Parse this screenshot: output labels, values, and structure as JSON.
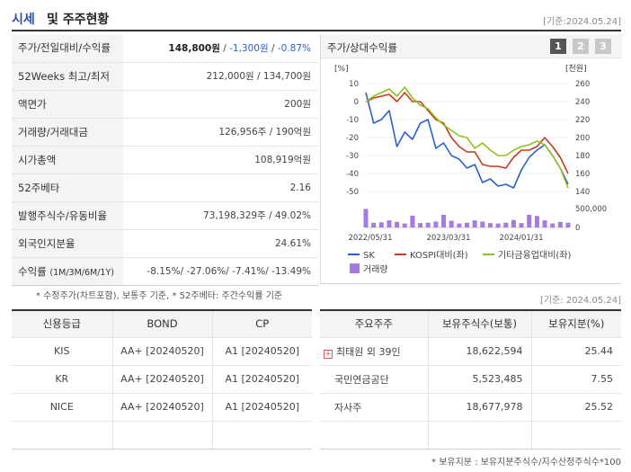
{
  "header": {
    "title_a": "시세",
    "title_b": "및 주주현황",
    "date": "[기준:2024.05.24]"
  },
  "summary": {
    "rows": [
      {
        "label": "주가/전일대비/수익률"
      },
      {
        "label": "52Weeks 최고/최저",
        "value": "212,000원 / 134,700원"
      },
      {
        "label": "액면가",
        "value": "200원"
      },
      {
        "label": "거래량/거래대금",
        "value": "126,956주 / 190억원"
      },
      {
        "label": "시가총액",
        "value": "108,919억원"
      },
      {
        "label": "52주베타",
        "value": "2.16"
      },
      {
        "label": "발행주식수/유동비율",
        "value": "73,198,329주 / 49.02%"
      },
      {
        "label": "외국인지분율",
        "value": "24.61%"
      },
      {
        "label": "수익률",
        "sub": "(1M/3M/6M/1Y)",
        "value": "-8.15%/ -27.06%/ -7.41%/ -13.49%"
      }
    ],
    "price": "148,800원",
    "sep": " / ",
    "change": "-1,300원",
    "change_pct": "-0.87%"
  },
  "chart_panel": {
    "title": "주가/상대수익률",
    "pages": [
      "1",
      "2",
      "3"
    ]
  },
  "chart_data": {
    "type": "line",
    "left_axis": {
      "label": "[%]",
      "ticks": [
        "10",
        "0",
        "-10",
        "-20",
        "-30",
        "-40",
        "-50"
      ],
      "range": [
        -50,
        10
      ]
    },
    "right_axis": {
      "label": "[천원]",
      "ticks": [
        "260",
        "240",
        "220",
        "200",
        "180",
        "160",
        "140"
      ],
      "range": [
        140,
        260
      ]
    },
    "volume_axis": {
      "ticks": [
        "500,000",
        "0"
      ],
      "range": [
        0,
        500000
      ]
    },
    "x_labels": [
      "2022/05/31",
      "2023/03/31",
      "2024/01/31"
    ],
    "series": [
      {
        "name": "SK",
        "color": "#2a62c9",
        "axis": "left",
        "values": [
          5,
          -12,
          -10,
          -5,
          -25,
          -17,
          -21,
          -12,
          -10,
          -26,
          -23,
          -30,
          -32,
          -37,
          -35,
          -45,
          -43,
          -47,
          -46,
          -48,
          -38,
          -31,
          -27,
          -24,
          -30,
          -37,
          -46
        ]
      },
      {
        "name": "KOSPI대비(좌)",
        "color": "#c23b22",
        "axis": "left",
        "values": [
          0,
          2,
          3,
          4,
          0,
          5,
          0,
          0,
          -5,
          -10,
          -12,
          -20,
          -25,
          -28,
          -28,
          -35,
          -36,
          -36,
          -37,
          -31,
          -27,
          -27,
          -25,
          -20,
          -25,
          -31,
          -40
        ]
      },
      {
        "name": "기타금융업대비(좌)",
        "color": "#8fc31f",
        "axis": "left",
        "values": [
          0,
          3,
          5,
          7,
          3,
          8,
          2,
          -2,
          -4,
          -9,
          -13,
          -16,
          -19,
          -20,
          -26,
          -23,
          -27,
          -30,
          -30,
          -27,
          -25,
          -24,
          -22,
          -24,
          -30,
          -37,
          -48
        ]
      }
    ],
    "volume": {
      "name": "거래량",
      "color": "#a57be0",
      "values": [
        470000,
        120000,
        130000,
        180000,
        140000,
        100000,
        300000,
        110000,
        120000,
        150000,
        320000,
        170000,
        100000,
        120000,
        180000,
        150000,
        110000,
        100000,
        120000,
        190000,
        110000,
        320000,
        290000,
        180000,
        100000,
        140000,
        120000
      ]
    }
  },
  "notes": {
    "note1": "* 수정주가(차트포함), 보통주 기준, * 52주베타: 주간수익률 기준",
    "date": "[기준: 2024.05.24]",
    "note2": "* 보유지분 : 보유지분주식수/지수산정주식수*100"
  },
  "credit": {
    "headers": [
      "신용등급",
      "BOND",
      "CP"
    ],
    "rows": [
      [
        "KIS",
        "AA+  [20240520]",
        "A1  [20240520]"
      ],
      [
        "KR",
        "AA+  [20240520]",
        "A1  [20240520]"
      ],
      [
        "NICE",
        "AA+  [20240520]",
        "A1  [20240520]"
      ],
      [
        "",
        "",
        ""
      ]
    ]
  },
  "shareholders": {
    "headers": [
      "주요주주",
      "보유주식수(보통)",
      "보유지분(%)"
    ],
    "rows": [
      {
        "name": "최태원 외 39인",
        "shares": "18,622,594",
        "pct": "25.44",
        "expand": "+"
      },
      {
        "name": "국민연금공단",
        "shares": "5,523,485",
        "pct": "7.55"
      },
      {
        "name": "자사주",
        "shares": "18,677,978",
        "pct": "25.52"
      },
      {
        "name": "",
        "shares": "",
        "pct": ""
      }
    ]
  }
}
